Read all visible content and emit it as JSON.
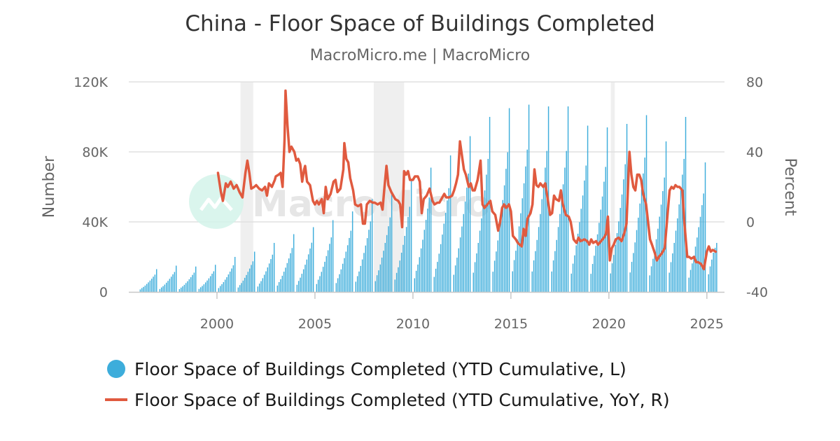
{
  "chart_data": {
    "type": "bar+line",
    "title": "China - Floor Space of Buildings Completed",
    "subtitle": "MacroMicro.me | MacroMicro",
    "watermark": "MacroMicro",
    "left_axis": {
      "label": "Number",
      "ticks": [
        "0",
        "40K",
        "80K",
        "120K"
      ],
      "tick_values": [
        0,
        40000,
        80000,
        120000
      ],
      "range": [
        0,
        120000
      ]
    },
    "right_axis": {
      "label": "Percent",
      "ticks": [
        "-40",
        "0",
        "40",
        "80"
      ],
      "tick_values": [
        -40,
        0,
        40,
        80
      ],
      "range": [
        -40,
        80
      ]
    },
    "x_axis": {
      "ticks": [
        "2000",
        "2005",
        "2010",
        "2015",
        "2020",
        "2025"
      ],
      "tick_values": [
        2000,
        2005,
        2010,
        2015,
        2020,
        2025
      ],
      "range": [
        1995.5,
        2025.9
      ]
    },
    "recession_bands": [
      [
        2001.2,
        2001.85
      ],
      [
        2008.0,
        2009.55
      ],
      [
        2020.1,
        2020.3
      ]
    ],
    "colors": {
      "bars": "#3daddb",
      "line": "#e05a3f",
      "band": "#efefef",
      "grid": "#e0e0e0"
    },
    "series": [
      {
        "name": "Floor Space of Buildings Completed (YTD Cumulative, L)",
        "kind": "bar",
        "axis": "left",
        "year_end_values": {
          "1996": 13000,
          "1997": 15000,
          "1998": 14500,
          "1999": 15500,
          "2000": 20000,
          "2001": 23000,
          "2002": 28000,
          "2003": 33000,
          "2004": 37000,
          "2005": 41000,
          "2006": 46000,
          "2007": 53000,
          "2008": 56000,
          "2009": 64000,
          "2010": 71000,
          "2011": 78000,
          "2012": 89000,
          "2013": 100000,
          "2014": 105000,
          "2015": 107000,
          "2016": 106000,
          "2017": 106000,
          "2018": 95000,
          "2019": 94000,
          "2020": 96000,
          "2021": 101000,
          "2022": 86000,
          "2023": 100000,
          "2024": 74000,
          "2025": 28000
        }
      },
      {
        "name": "Floor Space of Buildings Completed (YTD Cumulative, YoY, R)",
        "kind": "line",
        "axis": "right",
        "points": [
          [
            2000.05,
            28
          ],
          [
            2000.2,
            17
          ],
          [
            2000.3,
            12
          ],
          [
            2000.45,
            22
          ],
          [
            2000.55,
            20
          ],
          [
            2000.7,
            23
          ],
          [
            2000.85,
            19
          ],
          [
            2001.0,
            21
          ],
          [
            2001.15,
            17
          ],
          [
            2001.3,
            14
          ],
          [
            2001.45,
            28
          ],
          [
            2001.55,
            35
          ],
          [
            2001.65,
            28
          ],
          [
            2001.75,
            19
          ],
          [
            2001.9,
            20
          ],
          [
            2002.0,
            21
          ],
          [
            2002.15,
            19
          ],
          [
            2002.3,
            18
          ],
          [
            2002.45,
            20
          ],
          [
            2002.55,
            15
          ],
          [
            2002.65,
            22
          ],
          [
            2002.8,
            20
          ],
          [
            2002.95,
            24
          ],
          [
            2003.0,
            26
          ],
          [
            2003.15,
            27
          ],
          [
            2003.25,
            28
          ],
          [
            2003.35,
            20
          ],
          [
            2003.45,
            47
          ],
          [
            2003.5,
            75
          ],
          [
            2003.6,
            55
          ],
          [
            2003.7,
            40
          ],
          [
            2003.8,
            43
          ],
          [
            2003.95,
            40
          ],
          [
            2004.05,
            35
          ],
          [
            2004.15,
            36
          ],
          [
            2004.25,
            33
          ],
          [
            2004.35,
            23
          ],
          [
            2004.45,
            30
          ],
          [
            2004.5,
            32
          ],
          [
            2004.6,
            23
          ],
          [
            2004.75,
            21
          ],
          [
            2004.9,
            12
          ],
          [
            2005.0,
            10
          ],
          [
            2005.1,
            12
          ],
          [
            2005.2,
            10
          ],
          [
            2005.35,
            13
          ],
          [
            2005.45,
            5
          ],
          [
            2005.55,
            20
          ],
          [
            2005.65,
            13
          ],
          [
            2005.8,
            16
          ],
          [
            2005.95,
            23
          ],
          [
            2006.05,
            24
          ],
          [
            2006.15,
            17
          ],
          [
            2006.3,
            19
          ],
          [
            2006.45,
            30
          ],
          [
            2006.5,
            45
          ],
          [
            2006.6,
            36
          ],
          [
            2006.7,
            34
          ],
          [
            2006.8,
            25
          ],
          [
            2006.95,
            18
          ],
          [
            2007.05,
            10
          ],
          [
            2007.2,
            9
          ],
          [
            2007.35,
            10
          ],
          [
            2007.45,
            -1
          ],
          [
            2007.55,
            -1
          ],
          [
            2007.65,
            10
          ],
          [
            2007.8,
            12
          ],
          [
            2007.95,
            11
          ],
          [
            2008.05,
            11
          ],
          [
            2008.2,
            10
          ],
          [
            2008.35,
            11
          ],
          [
            2008.45,
            7
          ],
          [
            2008.55,
            20
          ],
          [
            2008.65,
            32
          ],
          [
            2008.75,
            21
          ],
          [
            2008.9,
            17
          ],
          [
            2009.0,
            15
          ],
          [
            2009.1,
            13
          ],
          [
            2009.25,
            12
          ],
          [
            2009.35,
            10
          ],
          [
            2009.45,
            -3
          ],
          [
            2009.55,
            29
          ],
          [
            2009.65,
            27
          ],
          [
            2009.75,
            29
          ],
          [
            2009.85,
            24
          ],
          [
            2010.0,
            24
          ],
          [
            2010.1,
            26
          ],
          [
            2010.25,
            26
          ],
          [
            2010.35,
            23
          ],
          [
            2010.45,
            5
          ],
          [
            2010.55,
            13
          ],
          [
            2010.7,
            15
          ],
          [
            2010.85,
            19
          ],
          [
            2011.0,
            12
          ],
          [
            2011.1,
            10
          ],
          [
            2011.25,
            11
          ],
          [
            2011.35,
            11
          ],
          [
            2011.5,
            14
          ],
          [
            2011.6,
            16
          ],
          [
            2011.7,
            14
          ],
          [
            2011.85,
            14
          ],
          [
            2012.0,
            15
          ],
          [
            2012.1,
            18
          ],
          [
            2012.2,
            22
          ],
          [
            2012.3,
            27
          ],
          [
            2012.4,
            46
          ],
          [
            2012.5,
            38
          ],
          [
            2012.6,
            30
          ],
          [
            2012.7,
            27
          ],
          [
            2012.85,
            20
          ],
          [
            2012.95,
            22
          ],
          [
            2013.05,
            18
          ],
          [
            2013.15,
            18
          ],
          [
            2013.3,
            24
          ],
          [
            2013.45,
            35
          ],
          [
            2013.55,
            10
          ],
          [
            2013.65,
            8
          ],
          [
            2013.8,
            10
          ],
          [
            2013.95,
            12
          ],
          [
            2014.05,
            6
          ],
          [
            2014.2,
            4
          ],
          [
            2014.35,
            -5
          ],
          [
            2014.45,
            0
          ],
          [
            2014.55,
            8
          ],
          [
            2014.65,
            10
          ],
          [
            2014.75,
            8
          ],
          [
            2014.9,
            10
          ],
          [
            2015.0,
            6
          ],
          [
            2015.1,
            -8
          ],
          [
            2015.25,
            -10
          ],
          [
            2015.35,
            -12
          ],
          [
            2015.45,
            -13
          ],
          [
            2015.55,
            -14
          ],
          [
            2015.65,
            -4
          ],
          [
            2015.75,
            -8
          ],
          [
            2015.85,
            2
          ],
          [
            2016.0,
            5
          ],
          [
            2016.1,
            10
          ],
          [
            2016.2,
            30
          ],
          [
            2016.3,
            21
          ],
          [
            2016.4,
            20
          ],
          [
            2016.5,
            22
          ],
          [
            2016.65,
            20
          ],
          [
            2016.75,
            22
          ],
          [
            2016.85,
            15
          ],
          [
            2017.0,
            4
          ],
          [
            2017.1,
            5
          ],
          [
            2017.2,
            15
          ],
          [
            2017.3,
            13
          ],
          [
            2017.45,
            12
          ],
          [
            2017.55,
            18
          ],
          [
            2017.65,
            10
          ],
          [
            2017.8,
            4
          ],
          [
            2017.95,
            3
          ],
          [
            2018.05,
            0
          ],
          [
            2018.2,
            -10
          ],
          [
            2018.35,
            -12
          ],
          [
            2018.45,
            -9
          ],
          [
            2018.55,
            -11
          ],
          [
            2018.75,
            -10
          ],
          [
            2018.9,
            -11
          ],
          [
            2019.0,
            -13
          ],
          [
            2019.1,
            -10
          ],
          [
            2019.2,
            -12
          ],
          [
            2019.35,
            -11
          ],
          [
            2019.45,
            -13
          ],
          [
            2019.6,
            -11
          ],
          [
            2019.75,
            -9
          ],
          [
            2019.85,
            -7
          ],
          [
            2019.95,
            3
          ],
          [
            2020.05,
            -22
          ],
          [
            2020.15,
            -15
          ],
          [
            2020.25,
            -13
          ],
          [
            2020.35,
            -10
          ],
          [
            2020.5,
            -9
          ],
          [
            2020.65,
            -11
          ],
          [
            2020.8,
            -6
          ],
          [
            2020.9,
            -1
          ],
          [
            2021.05,
            40
          ],
          [
            2021.15,
            27
          ],
          [
            2021.25,
            20
          ],
          [
            2021.35,
            18
          ],
          [
            2021.45,
            27
          ],
          [
            2021.55,
            27
          ],
          [
            2021.65,
            24
          ],
          [
            2021.75,
            16
          ],
          [
            2021.9,
            10
          ],
          [
            2022.0,
            0
          ],
          [
            2022.1,
            -10
          ],
          [
            2022.2,
            -13
          ],
          [
            2022.35,
            -18
          ],
          [
            2022.45,
            -22
          ],
          [
            2022.55,
            -20
          ],
          [
            2022.7,
            -18
          ],
          [
            2022.85,
            -15
          ],
          [
            2023.0,
            5
          ],
          [
            2023.1,
            18
          ],
          [
            2023.2,
            20
          ],
          [
            2023.3,
            19
          ],
          [
            2023.4,
            21
          ],
          [
            2023.5,
            20
          ],
          [
            2023.6,
            20
          ],
          [
            2023.75,
            18
          ],
          [
            2023.85,
            0
          ],
          [
            2024.0,
            -20
          ],
          [
            2024.1,
            -20
          ],
          [
            2024.2,
            -21
          ],
          [
            2024.35,
            -20
          ],
          [
            2024.45,
            -23
          ],
          [
            2024.55,
            -23
          ],
          [
            2024.7,
            -24
          ],
          [
            2024.85,
            -27
          ],
          [
            2025.0,
            -17
          ],
          [
            2025.1,
            -14
          ],
          [
            2025.2,
            -17
          ],
          [
            2025.3,
            -16
          ],
          [
            2025.45,
            -17
          ]
        ]
      }
    ],
    "legend": {
      "position": "bottom"
    }
  }
}
